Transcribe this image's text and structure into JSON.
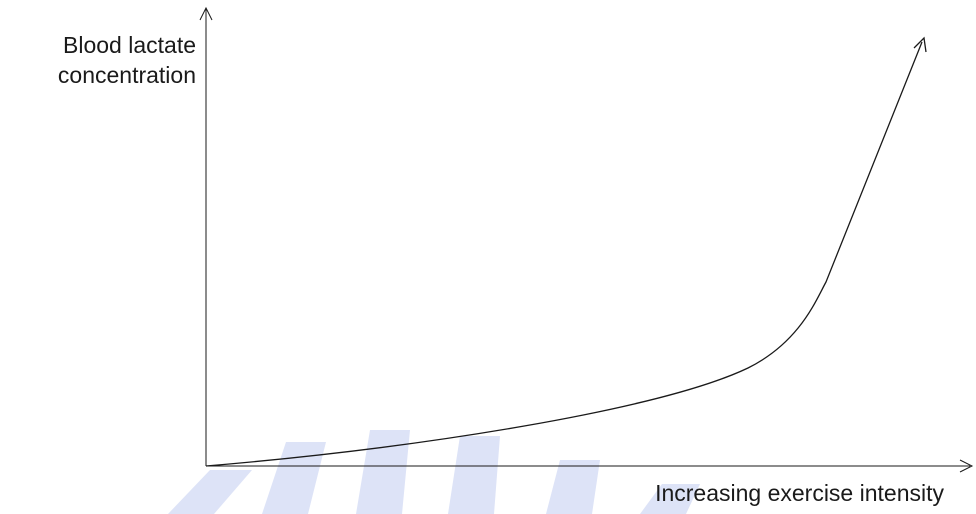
{
  "chart_data": {
    "type": "line",
    "ylabel_lines": [
      "Blood lactate",
      "concentration"
    ],
    "xlabel": "Increasing exercise intensity",
    "curve_shape": "exponential-rise",
    "axis_tick_labels": "none",
    "grid": false,
    "line_color": "#1a1a1a",
    "watermark_color": "#dde3f7",
    "watermark_text": "ALLIA"
  }
}
